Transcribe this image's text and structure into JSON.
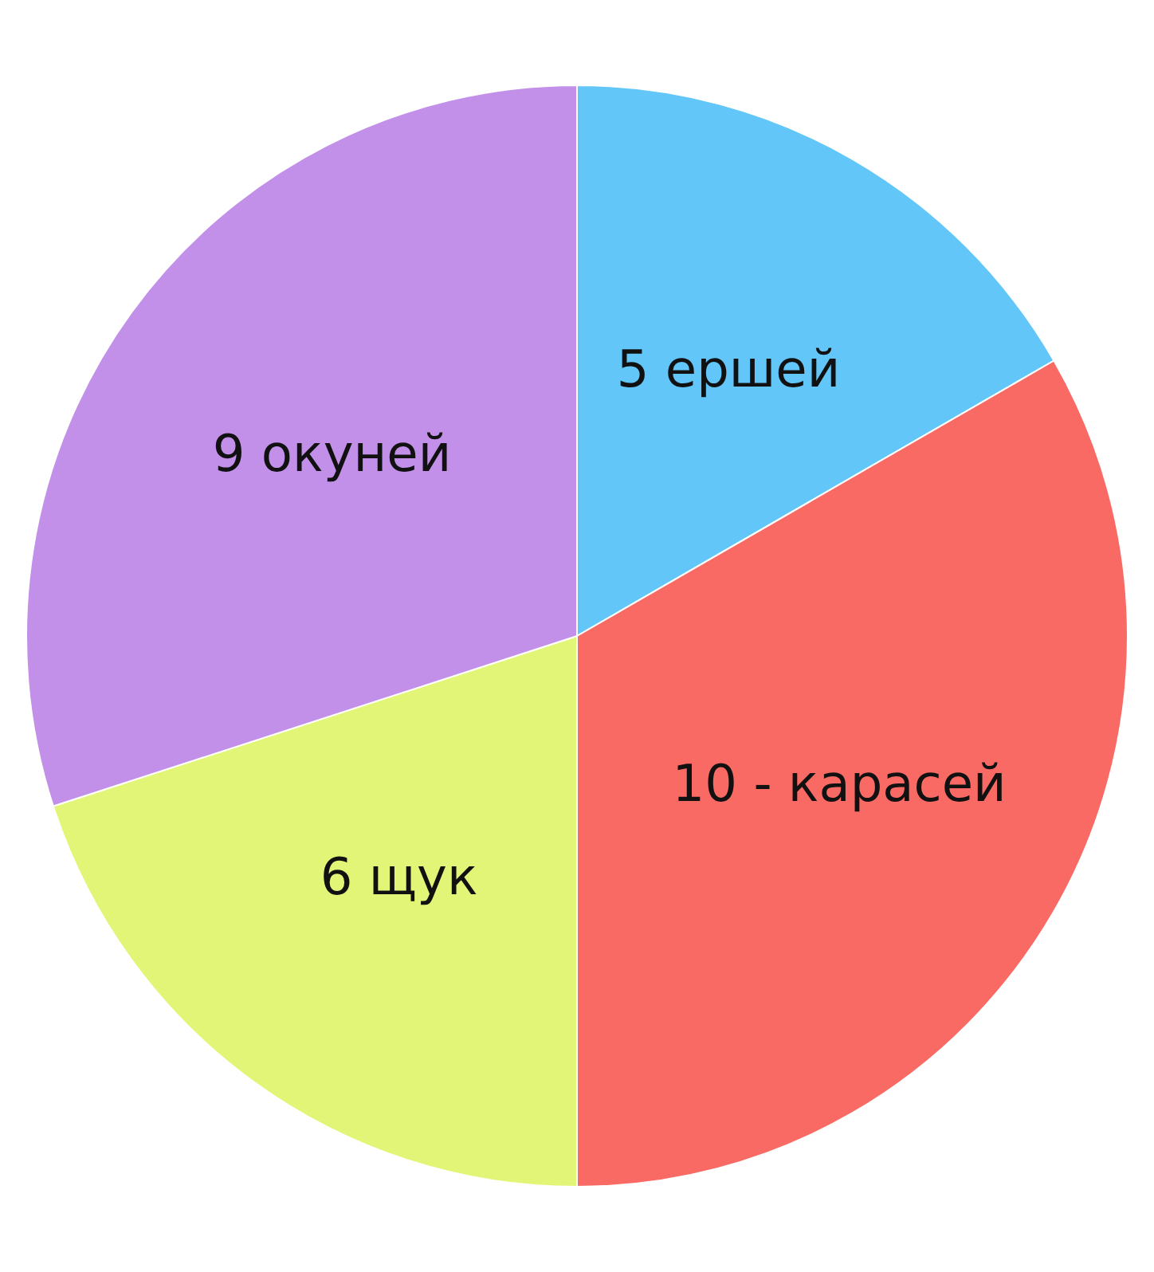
{
  "chart_data": {
    "type": "pie",
    "categories": [
      null,
      null,
      null,
      null
    ],
    "values": [
      5,
      10,
      6,
      9
    ],
    "colors": [
      "#62c6f8",
      "#fa6a64",
      "#e3f576",
      "#c290e8"
    ],
    "value_labels": [
      "5 ершей",
      "10 - карасей",
      "6 щук",
      "9 окуней"
    ],
    "legend": false
  }
}
